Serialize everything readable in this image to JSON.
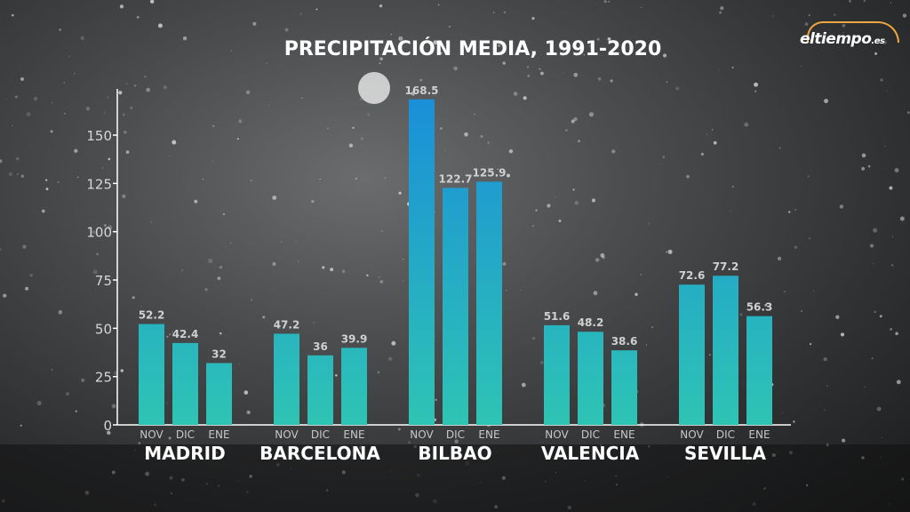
{
  "chart_data": {
    "type": "bar",
    "title": "PRECIPITACIÓN MEDIA, 1991-2020",
    "xlabel": "",
    "ylabel": "",
    "ylim": [
      0,
      170
    ],
    "yticks": [
      0,
      25,
      50,
      75,
      100,
      125,
      150
    ],
    "months": [
      "NOV",
      "DIC",
      "ENE"
    ],
    "groups": [
      {
        "name": "MADRID",
        "values": [
          52.2,
          42.4,
          32
        ],
        "labels": [
          "52.2",
          "42.4",
          "32"
        ]
      },
      {
        "name": "BARCELONA",
        "values": [
          47.2,
          36,
          39.9
        ],
        "labels": [
          "47.2",
          "36",
          "39.9"
        ]
      },
      {
        "name": "BILBAO",
        "values": [
          168.5,
          122.7,
          125.9
        ],
        "labels": [
          "168.5",
          "122.7",
          "125.9"
        ]
      },
      {
        "name": "VALENCIA",
        "values": [
          51.6,
          48.2,
          38.6
        ],
        "labels": [
          "51.6",
          "48.2",
          "38.6"
        ]
      },
      {
        "name": "SEVILLA",
        "values": [
          72.6,
          77.2,
          56.3
        ],
        "labels": [
          "72.6",
          "77.2",
          "56.3"
        ]
      }
    ],
    "colors": {
      "bar_bottom": "#2ec4b4",
      "bar_top": "#1a8fd8",
      "axis": "#ffffff",
      "text": "#ffffff",
      "label": "#d8d8d8"
    }
  },
  "logo": {
    "name": "eltiempo",
    "suffix": ".es"
  }
}
